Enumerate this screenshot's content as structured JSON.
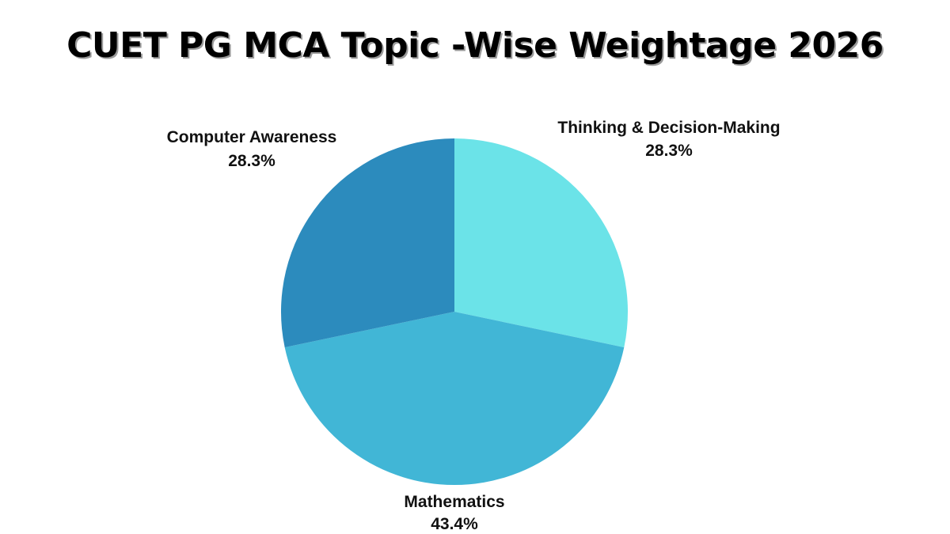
{
  "chart_data": {
    "type": "pie",
    "title": "CUET PG MCA Topic -Wise Weightage 2026",
    "slices": [
      {
        "label": "Thinking & Decision-Making",
        "value": 28.3,
        "display": "28.3%",
        "color": "#6be3e8"
      },
      {
        "label": "Mathematics",
        "value": 43.4,
        "display": "43.4%",
        "color": "#41b6d6"
      },
      {
        "label": "Computer Awareness",
        "value": 28.3,
        "display": "28.3%",
        "color": "#2c8bbd"
      }
    ],
    "start_angle": "12 o'clock",
    "direction": "clockwise",
    "legend": "none",
    "labels": "outside"
  }
}
